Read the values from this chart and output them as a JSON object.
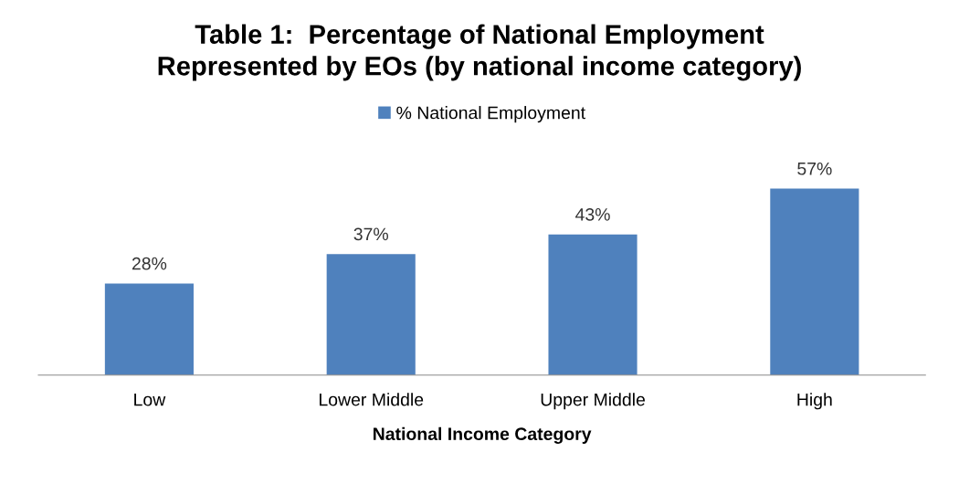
{
  "chart_data": {
    "type": "bar",
    "title": "Table 1:  Percentage of National Employment\nRepresented by EOs (by national income category)",
    "xlabel": "National Income Category",
    "categories": [
      "Low",
      "Lower Middle",
      "Upper Middle",
      "High"
    ],
    "series": [
      {
        "name": "% National Employment",
        "color": "#4f81bd",
        "values": [
          28,
          37,
          43,
          57
        ],
        "value_labels": [
          "28%",
          "37%",
          "43%",
          "57%"
        ]
      }
    ],
    "legend": "top",
    "grid": false,
    "tick_labels": "x"
  }
}
